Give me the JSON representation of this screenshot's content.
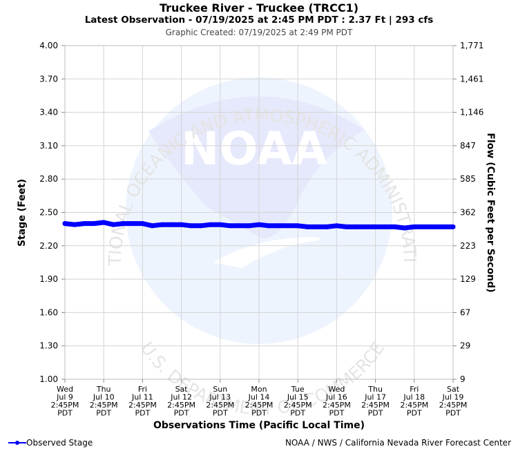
{
  "header": {
    "title": "Truckee River - Truckee (TRCC1)",
    "subtitle": "Latest Observation - 07/19/2025 at 2:45 PM PDT : 2.37 Ft | 293 cfs",
    "created": "Graphic Created: 07/19/2025 at 2:49 PM PDT"
  },
  "watermark": {
    "logo_text": "NOAA",
    "arc_top": "NATIONAL OCEANIC AND ATMOSPHERIC ADMINISTRATION",
    "arc_bottom": "U.S. DEPARTMENT OF COMMERCE"
  },
  "legend": {
    "label": "Observed Stage"
  },
  "credit": "NOAA / NWS / California Nevada River Forecast Center",
  "colors": {
    "series": "#0000ff",
    "grid": "#d3d3d3",
    "watermark_logo": "#e6e8fb",
    "watermark_circle": "#eef4fd"
  },
  "chart_data": {
    "type": "line",
    "xlabel": "Observations Time (Pacific Local Time)",
    "ylabel": "Stage (Feet)",
    "y2label": "Flow (Cubic Feet per Second)",
    "ylim": [
      1.0,
      4.0
    ],
    "grid": true,
    "legend_position": "bottom-left",
    "y_ticks": [
      "1.00",
      "1.30",
      "1.60",
      "1.90",
      "2.20",
      "2.50",
      "2.80",
      "3.10",
      "3.40",
      "3.70",
      "4.00"
    ],
    "y2_ticks": [
      "9",
      "29",
      "67",
      "129",
      "223",
      "362",
      "585",
      "847",
      "1,146",
      "1,461",
      "1,771"
    ],
    "x_ticks": [
      [
        "Wed",
        "Jul 9",
        "2:45PM",
        "PDT"
      ],
      [
        "Thu",
        "Jul 10",
        "2:45PM",
        "PDT"
      ],
      [
        "Fri",
        "Jul 11",
        "2:45PM",
        "PDT"
      ],
      [
        "Sat",
        "Jul 12",
        "2:45PM",
        "PDT"
      ],
      [
        "Sun",
        "Jul 13",
        "2:45PM",
        "PDT"
      ],
      [
        "Mon",
        "Jul 14",
        "2:45PM",
        "PDT"
      ],
      [
        "Tue",
        "Jul 15",
        "2:45PM",
        "PDT"
      ],
      [
        "Wed",
        "Jul 16",
        "2:45PM",
        "PDT"
      ],
      [
        "Thu",
        "Jul 17",
        "2:45PM",
        "PDT"
      ],
      [
        "Fri",
        "Jul 18",
        "2:45PM",
        "PDT"
      ],
      [
        "Sat",
        "Jul 19",
        "2:45PM",
        "PDT"
      ]
    ],
    "series": [
      {
        "name": "Observed Stage",
        "x": [
          "2025-07-09 14:45",
          "2025-07-09 20:45",
          "2025-07-10 02:45",
          "2025-07-10 08:45",
          "2025-07-10 14:45",
          "2025-07-10 20:45",
          "2025-07-11 02:45",
          "2025-07-11 08:45",
          "2025-07-11 14:45",
          "2025-07-11 20:45",
          "2025-07-12 02:45",
          "2025-07-12 08:45",
          "2025-07-12 14:45",
          "2025-07-12 20:45",
          "2025-07-13 02:45",
          "2025-07-13 08:45",
          "2025-07-13 14:45",
          "2025-07-13 20:45",
          "2025-07-14 02:45",
          "2025-07-14 08:45",
          "2025-07-14 14:45",
          "2025-07-14 20:45",
          "2025-07-15 02:45",
          "2025-07-15 08:45",
          "2025-07-15 14:45",
          "2025-07-15 20:45",
          "2025-07-16 02:45",
          "2025-07-16 08:45",
          "2025-07-16 14:45",
          "2025-07-16 20:45",
          "2025-07-17 02:45",
          "2025-07-17 08:45",
          "2025-07-17 14:45",
          "2025-07-17 20:45",
          "2025-07-18 02:45",
          "2025-07-18 08:45",
          "2025-07-18 14:45",
          "2025-07-18 20:45",
          "2025-07-19 02:45",
          "2025-07-19 08:45",
          "2025-07-19 14:45"
        ],
        "values": [
          2.4,
          2.39,
          2.4,
          2.4,
          2.41,
          2.39,
          2.4,
          2.4,
          2.4,
          2.38,
          2.39,
          2.39,
          2.39,
          2.38,
          2.38,
          2.39,
          2.39,
          2.38,
          2.38,
          2.38,
          2.39,
          2.38,
          2.38,
          2.38,
          2.38,
          2.37,
          2.37,
          2.37,
          2.38,
          2.37,
          2.37,
          2.37,
          2.37,
          2.37,
          2.37,
          2.36,
          2.37,
          2.37,
          2.37,
          2.37,
          2.37
        ]
      }
    ]
  }
}
